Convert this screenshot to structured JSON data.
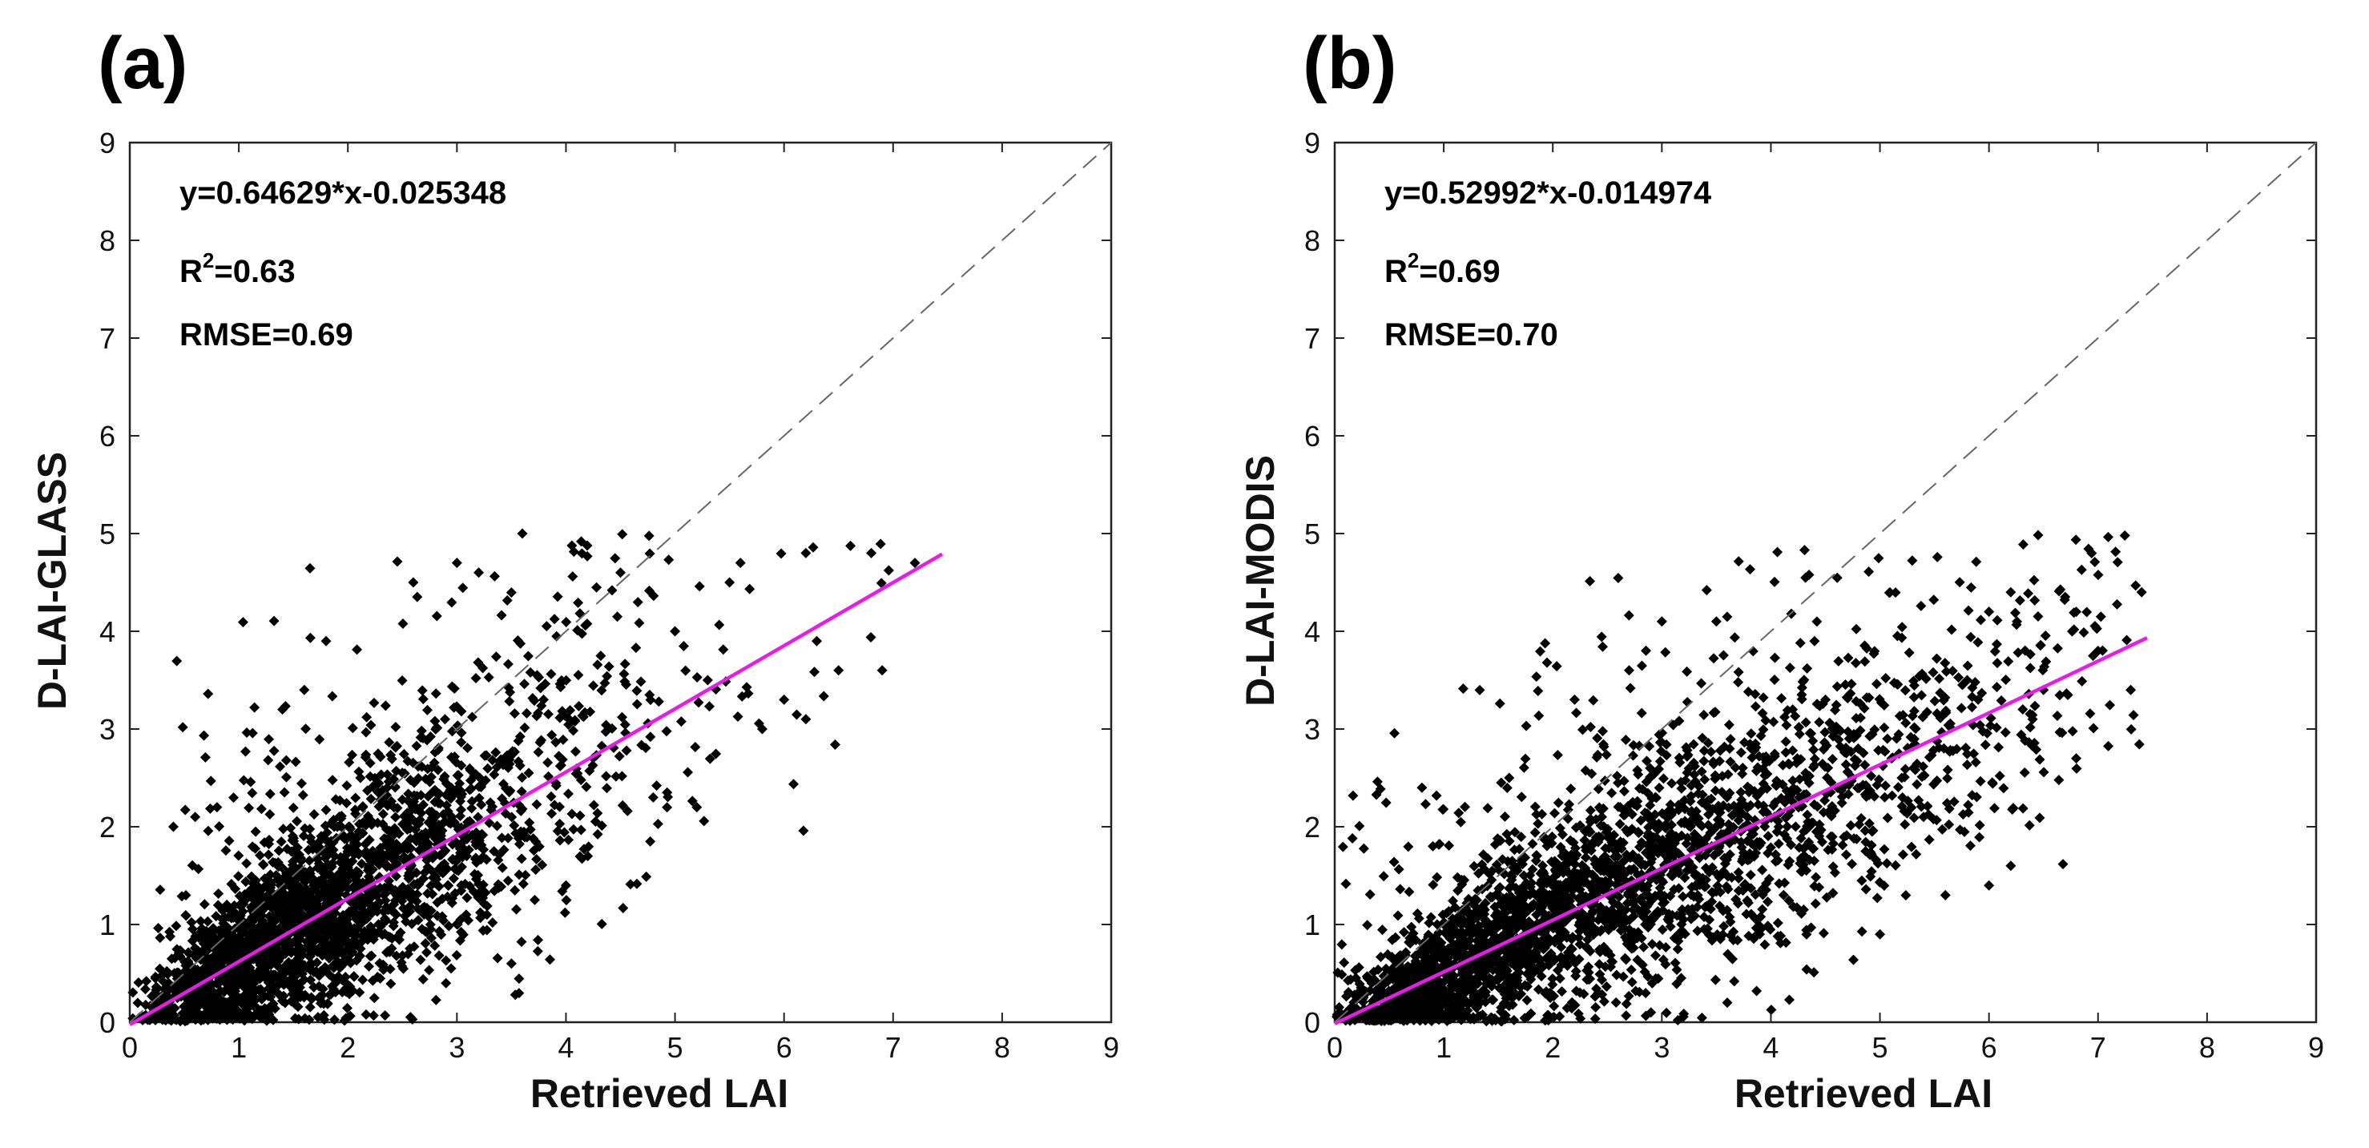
{
  "chart_data": [
    {
      "type": "scatter",
      "panel_label": "(a)",
      "xlabel": "Retrieved  LAI",
      "ylabel": "D-LAI-GLASS",
      "xlim": [
        0,
        9
      ],
      "ylim": [
        0,
        9
      ],
      "xticks": [
        "0",
        "1",
        "2",
        "3",
        "4",
        "5",
        "6",
        "7",
        "8",
        "9"
      ],
      "yticks": [
        "0",
        "1",
        "2",
        "3",
        "4",
        "5",
        "6",
        "7",
        "8",
        "9"
      ],
      "stats": {
        "equation": "y=0.64629*x-0.025348",
        "r2_prefix": "R",
        "r2_exp": "2",
        "r2_value": "=0.63",
        "rmse": "RMSE=0.69"
      },
      "fit": {
        "slope": 0.64629,
        "intercept": -0.025348,
        "x_range": [
          0,
          7.45
        ],
        "color": "#e81ce8"
      },
      "one_to_one": {
        "x_range": [
          0,
          9
        ],
        "color": "#666666"
      },
      "marker_color": "#000000",
      "points": {
        "n": 2600,
        "seed": 11,
        "x_mode": 1.3,
        "x_shape": 2.6,
        "slope": 0.64629,
        "intercept": -0.025348,
        "noise": 0.62,
        "x_max": 7.1,
        "outliers": [
          [
            5.5,
            4.5
          ],
          [
            6.2,
            4.8
          ],
          [
            6.8,
            4.8
          ],
          [
            7.2,
            4.7
          ],
          [
            6.5,
            3.6
          ],
          [
            6.2,
            3.1
          ],
          [
            5.8,
            3.0
          ],
          [
            5.6,
            4.7
          ],
          [
            5.0,
            4.0
          ],
          [
            4.8,
            2.3
          ],
          [
            5.3,
            3.5
          ],
          [
            6.0,
            3.3
          ],
          [
            4.5,
            4.6
          ],
          [
            3.6,
            5.0
          ],
          [
            3.2,
            4.6
          ],
          [
            3.0,
            4.7
          ],
          [
            2.6,
            4.5
          ],
          [
            1.8,
            3.9
          ],
          [
            1.4,
            3.2
          ],
          [
            1.6,
            3.4
          ],
          [
            0.4,
            2.0
          ],
          [
            0.6,
            2.1
          ],
          [
            0.8,
            2.2
          ],
          [
            4.2,
            1.7
          ],
          [
            4.0,
            1.4
          ],
          [
            3.5,
            0.6
          ],
          [
            2.9,
            0.4
          ],
          [
            6.3,
            3.9
          ],
          [
            6.9,
            3.6
          ],
          [
            5.2,
            2.2
          ]
        ]
      }
    },
    {
      "type": "scatter",
      "panel_label": "(b)",
      "xlabel": "Retrieved  LAI",
      "ylabel": "D-LAI-MODIS",
      "xlim": [
        0,
        9
      ],
      "ylim": [
        0,
        9
      ],
      "xticks": [
        "0",
        "1",
        "2",
        "3",
        "4",
        "5",
        "6",
        "7",
        "8",
        "9"
      ],
      "yticks": [
        "0",
        "1",
        "2",
        "3",
        "4",
        "5",
        "6",
        "7",
        "8",
        "9"
      ],
      "stats": {
        "equation": "y=0.52992*x-0.014974",
        "r2_prefix": "R",
        "r2_exp": "2",
        "r2_value": "=0.69",
        "rmse": "RMSE=0.70"
      },
      "fit": {
        "slope": 0.52992,
        "intercept": -0.014974,
        "x_range": [
          0,
          7.45
        ],
        "color": "#e81ce8"
      },
      "one_to_one": {
        "x_range": [
          0,
          9
        ],
        "color": "#666666"
      },
      "marker_color": "#000000",
      "points": {
        "n": 3000,
        "seed": 29,
        "x_mode": 1.4,
        "x_shape": 2.4,
        "slope": 0.52992,
        "intercept": -0.014974,
        "noise": 0.55,
        "x_max": 7.4,
        "outliers": [
          [
            7.4,
            4.4
          ],
          [
            6.8,
            4.2
          ],
          [
            6.2,
            4.4
          ],
          [
            6.0,
            4.2
          ],
          [
            7.0,
            3.8
          ],
          [
            6.5,
            3.4
          ],
          [
            6.8,
            2.7
          ],
          [
            6.2,
            1.6
          ],
          [
            6.0,
            1.4
          ],
          [
            5.6,
            1.3
          ],
          [
            5.0,
            0.9
          ],
          [
            5.4,
            2.1
          ],
          [
            5.8,
            3.5
          ],
          [
            5.9,
            3.3
          ],
          [
            4.4,
            3.9
          ],
          [
            4.5,
            3.3
          ],
          [
            4.2,
            3.2
          ],
          [
            3.5,
            4.1
          ],
          [
            3.0,
            4.1
          ],
          [
            2.7,
            3.6
          ],
          [
            2.2,
            3.3
          ],
          [
            1.6,
            2.5
          ],
          [
            0.8,
            2.4
          ],
          [
            0.9,
            1.8
          ],
          [
            7.3,
            3.4
          ],
          [
            6.4,
            3.1
          ],
          [
            5.2,
            2.5
          ],
          [
            4.8,
            2.8
          ],
          [
            3.6,
            0.2
          ],
          [
            2.9,
            0.1
          ]
        ]
      }
    }
  ]
}
